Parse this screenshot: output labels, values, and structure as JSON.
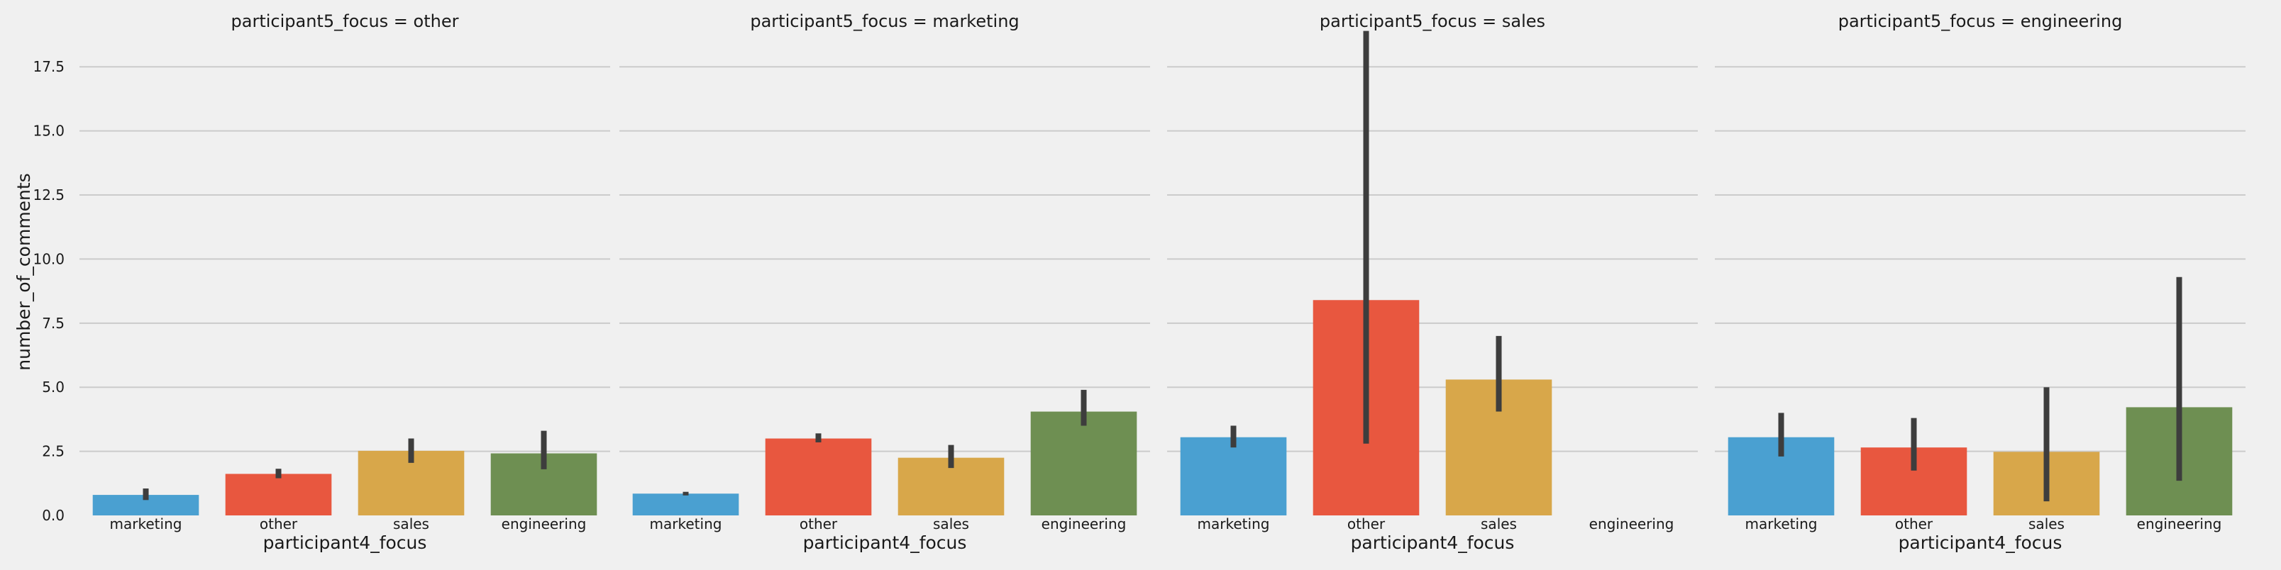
{
  "chart_data": {
    "type": "bar",
    "ylabel": "number_of_comments",
    "xlabel": "participant4_focus",
    "ylim": [
      0,
      19
    ],
    "yticks": [
      "0.0",
      "2.5",
      "5.0",
      "7.5",
      "10.0",
      "12.5",
      "15.0",
      "17.5"
    ],
    "ytick_values": [
      0,
      2.5,
      5,
      7.5,
      10,
      12.5,
      15,
      17.5
    ],
    "grid": true,
    "categories": [
      "marketing",
      "other",
      "sales",
      "engineering"
    ],
    "colors": [
      "#4aa0d1",
      "#e8573f",
      "#d8a74a",
      "#6e8f52"
    ],
    "error_bar_color": "#3d3d3d",
    "background_color": "#f0f0f0",
    "grid_color": "#cbcbcb",
    "facets": [
      {
        "title": "participant5_focus = other",
        "values": [
          0.8,
          1.62,
          2.52,
          2.42
        ],
        "errors": [
          [
            0.6,
            1.05
          ],
          [
            1.45,
            1.82
          ],
          [
            2.05,
            3.0
          ],
          [
            1.8,
            3.3
          ]
        ]
      },
      {
        "title": "participant5_focus = marketing",
        "values": [
          0.85,
          3.0,
          2.25,
          4.05
        ],
        "errors": [
          [
            0.78,
            0.92
          ],
          [
            2.85,
            3.2
          ],
          [
            1.85,
            2.75
          ],
          [
            3.5,
            4.9
          ]
        ]
      },
      {
        "title": "participant5_focus = sales",
        "values": [
          3.05,
          8.4,
          5.3,
          null
        ],
        "errors": [
          [
            2.65,
            3.5
          ],
          [
            2.8,
            18.9
          ],
          [
            4.05,
            7.0
          ],
          null
        ]
      },
      {
        "title": "participant5_focus = engineering",
        "values": [
          3.05,
          2.65,
          2.48,
          4.22
        ],
        "errors": [
          [
            2.3,
            4.0
          ],
          [
            1.75,
            3.8
          ],
          [
            0.55,
            5.0
          ],
          [
            1.35,
            9.3
          ]
        ]
      }
    ]
  }
}
